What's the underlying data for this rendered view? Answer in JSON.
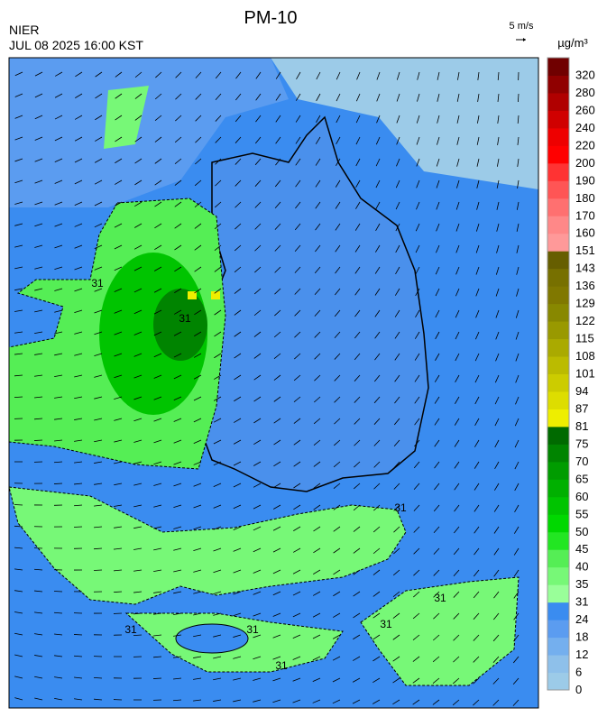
{
  "header": {
    "title": "PM-10",
    "agency": "NIER",
    "timestamp": "JUL 08 2025 16:00 KST"
  },
  "wind_reference": {
    "label": "5 m/s"
  },
  "colorbar": {
    "unit": "µg/m³",
    "ticks": [
      0,
      6,
      12,
      18,
      24,
      31,
      35,
      40,
      45,
      50,
      55,
      60,
      65,
      70,
      75,
      81,
      87,
      94,
      101,
      108,
      115,
      122,
      129,
      136,
      143,
      151,
      160,
      170,
      180,
      190,
      200,
      220,
      240,
      260,
      280,
      320
    ],
    "colors": [
      "#9ccbe8",
      "#8ec0ea",
      "#74afee",
      "#5b9cf0",
      "#3a8cf0",
      "#99ff99",
      "#77f877",
      "#55ee55",
      "#22e622",
      "#00d800",
      "#00c400",
      "#00b000",
      "#009c00",
      "#008400",
      "#006a00",
      "#eeee00",
      "#dddd00",
      "#cccc00",
      "#bbbb00",
      "#aaaa00",
      "#999900",
      "#888800",
      "#807800",
      "#777000",
      "#665e00",
      "#ff9999",
      "#ff8888",
      "#ff7070",
      "#ff5555",
      "#ff3333",
      "#ff0000",
      "#ee0000",
      "#d00000",
      "#b00000",
      "#900000",
      "#700000"
    ]
  },
  "contour_labels": [
    "31",
    "31",
    "31",
    "31",
    "31",
    "31",
    "31",
    "31"
  ]
}
